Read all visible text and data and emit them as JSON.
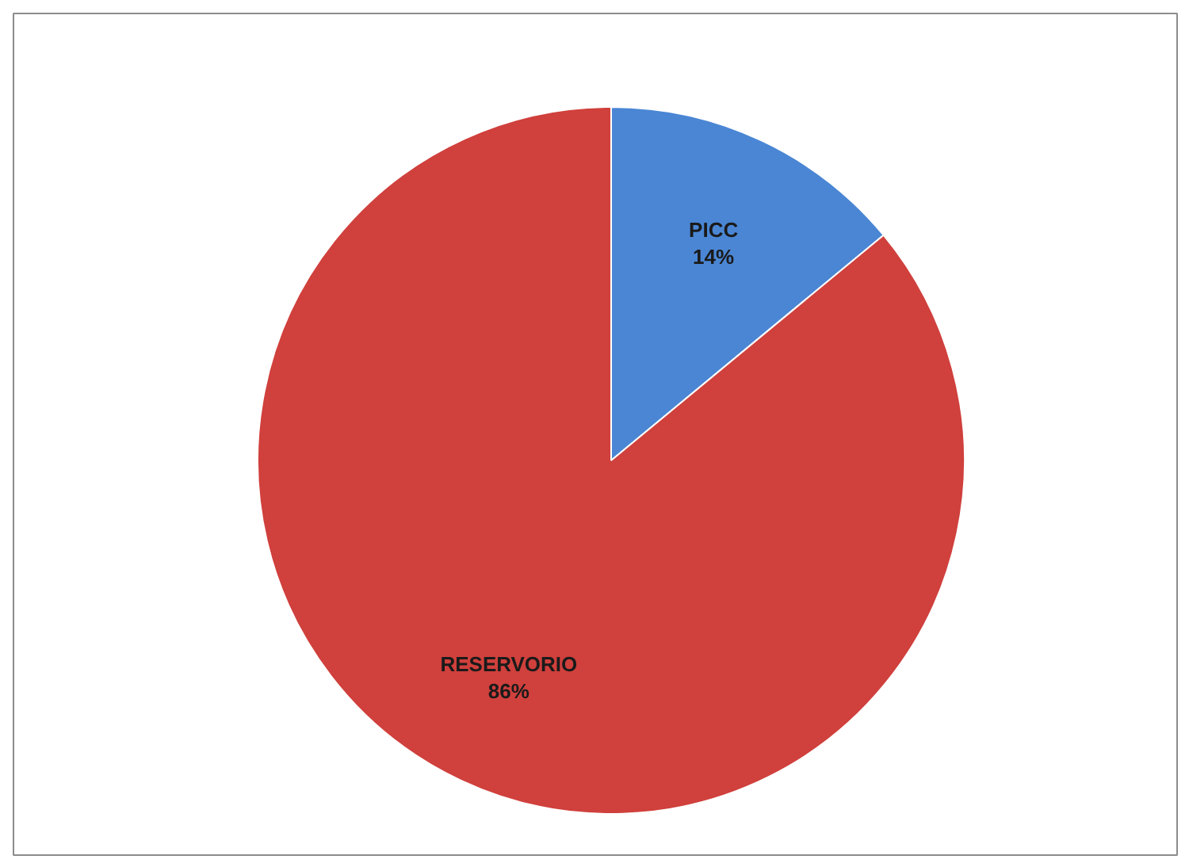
{
  "chart_data": {
    "type": "pie",
    "categories": [
      "PICC",
      "RESERVORIO"
    ],
    "values": [
      14,
      86
    ],
    "colors": [
      "#4a86d4",
      "#d0403c"
    ],
    "value_labels": [
      "14%",
      "86%"
    ],
    "legend": false
  }
}
